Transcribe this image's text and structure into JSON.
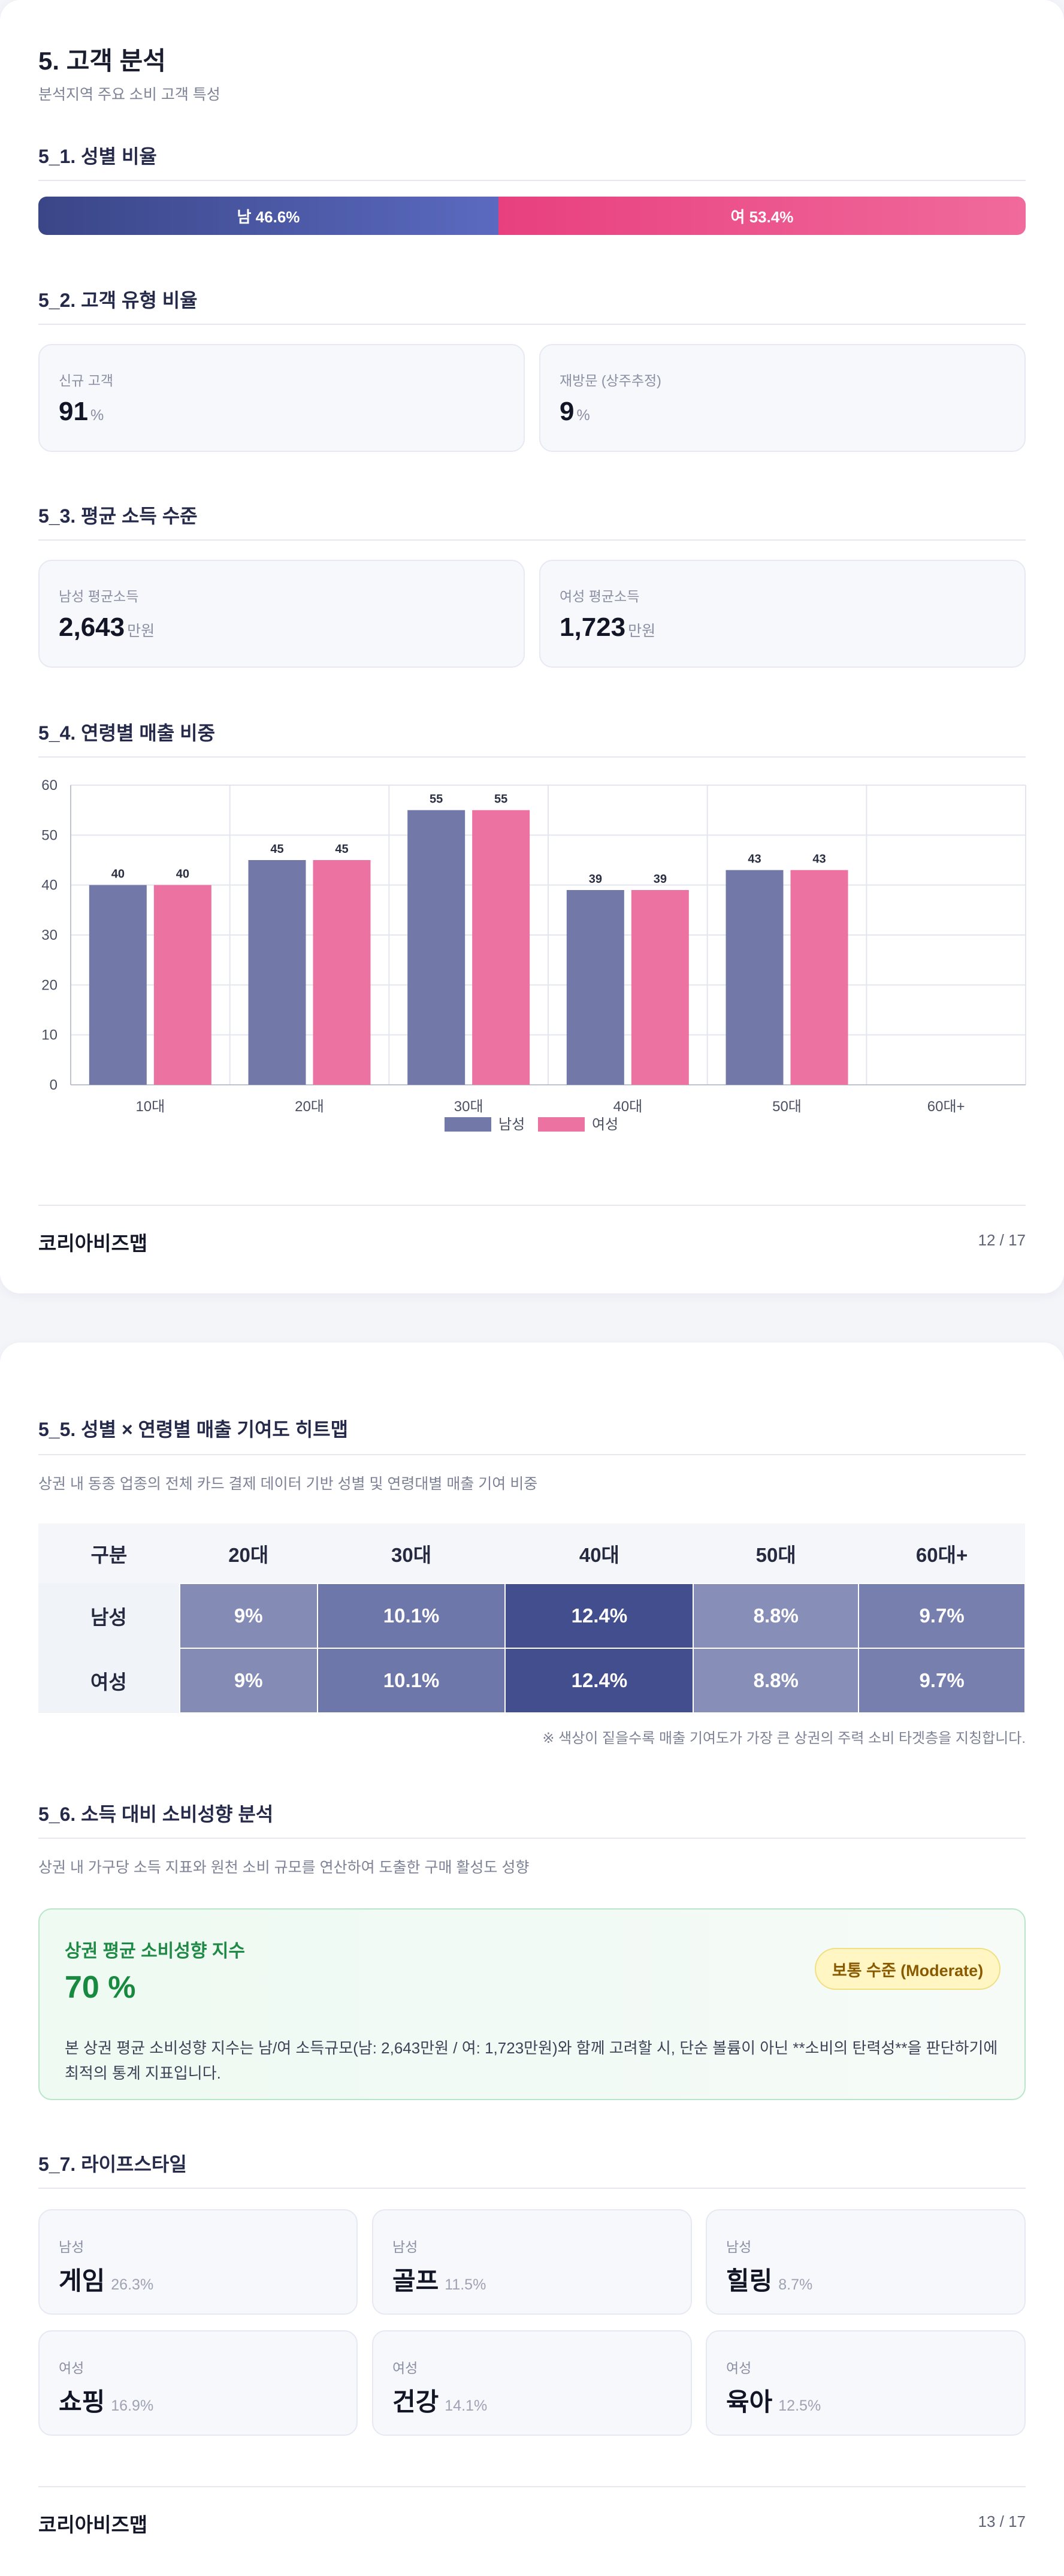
{
  "page1": {
    "title": "5. 고객 분석",
    "subtitle": "분석지역 주요 소비 고객 특성",
    "gender": {
      "heading": "5_1. 성별 비율",
      "male_label": "남 46.6%",
      "female_label": "여 53.4%",
      "male_share": 46.6,
      "female_share": 53.4,
      "male_color": "#4652a3",
      "female_color": "#ec4f8a"
    },
    "customer_type": {
      "heading": "5_2. 고객 유형 비율",
      "new": {
        "label": "신규 고객",
        "value": "91",
        "unit": "%"
      },
      "returning": {
        "label": "재방문 (상주추정)",
        "value": "9",
        "unit": "%"
      }
    },
    "income": {
      "heading": "5_3. 평균 소득 수준",
      "male": {
        "label": "남성 평균소득",
        "value": "2,643",
        "unit": "만원"
      },
      "female": {
        "label": "여성 평균소득",
        "value": "1,723",
        "unit": "만원"
      }
    },
    "age_sales": {
      "heading": "5_4. 연령별 매출 비중"
    },
    "footer": {
      "brand": "코리아비즈맵",
      "page": "12 / 17"
    }
  },
  "chart_data": {
    "type": "bar",
    "categories": [
      "10대",
      "20대",
      "30대",
      "40대",
      "50대",
      "60대+"
    ],
    "series": [
      {
        "name": "남성",
        "values": [
          40,
          45,
          55,
          39,
          43,
          null
        ],
        "color": "#7279a8"
      },
      {
        "name": "여성",
        "values": [
          40,
          45,
          55,
          39,
          43,
          null
        ],
        "color": "#ec72a2"
      }
    ],
    "yticks": [
      "0",
      "10",
      "20",
      "30",
      "40",
      "50",
      "60"
    ],
    "ylim": [
      0,
      60
    ],
    "grid": true,
    "legend": "bottom-center"
  },
  "page2": {
    "heatmap": {
      "heading": "5_5. 성별 × 연령별 매출 기여도 히트맵",
      "description": "상권 내 동종 업종의 전체 카드 결제 데이터 기반 성별 및 연령대별 매출 기여 비중",
      "columns": [
        "구분",
        "20대",
        "30대",
        "40대",
        "50대",
        "60대+"
      ],
      "rows": [
        {
          "label": "남성",
          "cells": [
            "9%",
            "10.1%",
            "12.4%",
            "8.8%",
            "9.7%"
          ],
          "values": [
            9,
            10.1,
            12.4,
            8.8,
            9.7
          ]
        },
        {
          "label": "여성",
          "cells": [
            "9%",
            "10.1%",
            "12.4%",
            "8.8%",
            "9.7%"
          ],
          "values": [
            9,
            10.1,
            12.4,
            8.8,
            9.7
          ]
        }
      ],
      "note": "※ 색상이 짙을수록 매출 기여도가 가장 큰 상권의 주력 소비 타겟층을 지칭합니다."
    },
    "spending": {
      "heading": "5_6. 소득 대비 소비성향 분석",
      "description": "상권 내 가구당 소득 지표와 원천 소비 규모를 연산하여 도출한 구매 활성도 성향",
      "index_title": "상권 평균 소비성향 지수",
      "index_value": "70 %",
      "badge": "보통 수준 (Moderate)",
      "body": "본 상권 평균 소비성향 지수는 남/여 소득규모(남: 2,643만원 / 여: 1,723만원)와 함께 고려할 시, 단순 볼륨이 아닌 **소비의 탄력성**을 판단하기에 최적의 통계 지표입니다."
    },
    "lifestyle": {
      "heading": "5_7. 라이프스타일",
      "items": [
        {
          "gender": "남성",
          "name": "게임",
          "pct": "26.3%"
        },
        {
          "gender": "남성",
          "name": "골프",
          "pct": "11.5%"
        },
        {
          "gender": "남성",
          "name": "힐링",
          "pct": "8.7%"
        },
        {
          "gender": "여성",
          "name": "쇼핑",
          "pct": "16.9%"
        },
        {
          "gender": "여성",
          "name": "건강",
          "pct": "14.1%"
        },
        {
          "gender": "여성",
          "name": "육아",
          "pct": "12.5%"
        }
      ]
    },
    "footer": {
      "brand": "코리아비즈맵",
      "page": "13 / 17"
    }
  }
}
